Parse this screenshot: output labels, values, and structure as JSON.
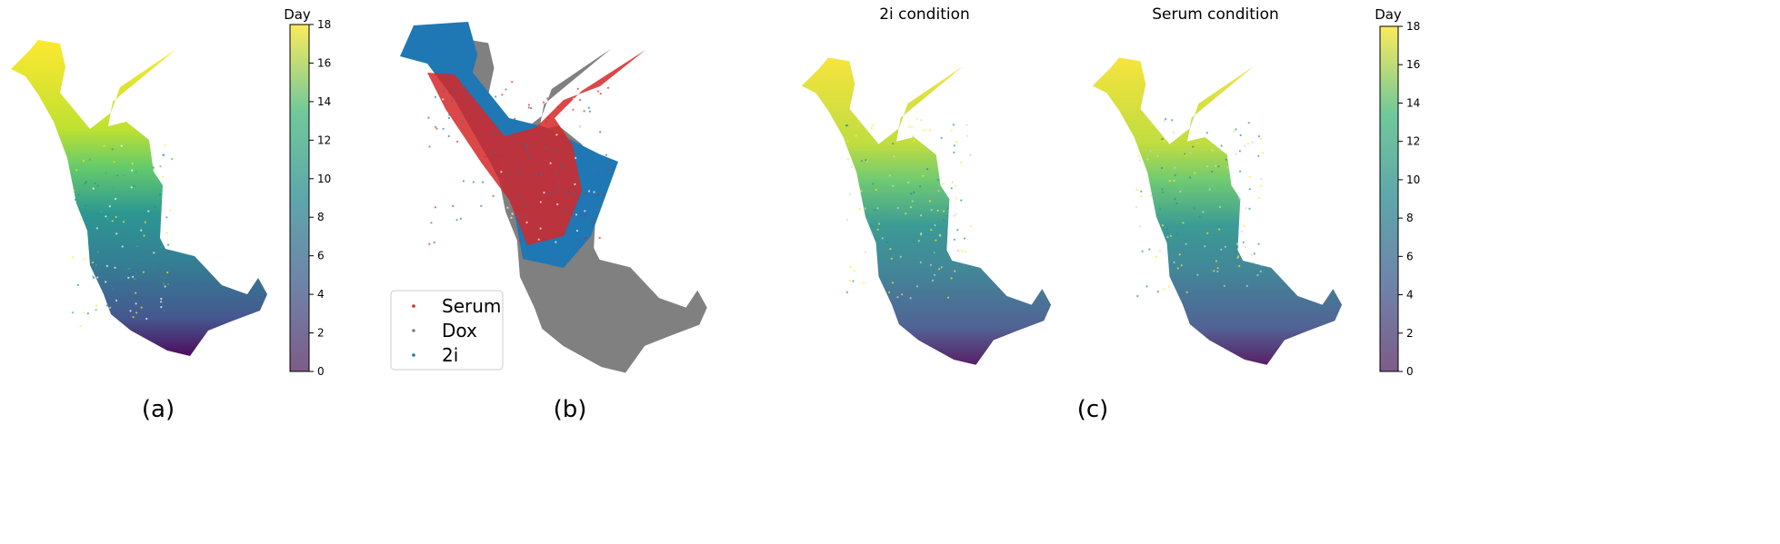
{
  "chart_data": [
    {
      "id": "panel_a",
      "type": "scatter",
      "panel_label": "(a)",
      "title": "",
      "color_by": "Day",
      "colormap": "viridis",
      "colorbar": {
        "label": "Day",
        "range": [
          0,
          18
        ],
        "ticks": [
          "0",
          "2",
          "4",
          "6",
          "8",
          "10",
          "12",
          "14",
          "16",
          "18"
        ]
      },
      "axes_visible": false
    },
    {
      "id": "panel_b",
      "type": "scatter",
      "panel_label": "(b)",
      "title": "",
      "color_by": "condition",
      "legend_position": "lower-left",
      "series": [
        {
          "name": "Serum",
          "color": "#d62728"
        },
        {
          "name": "Dox",
          "color": "#7f7f7f"
        },
        {
          "name": "2i",
          "color": "#1f77b4"
        }
      ],
      "axes_visible": false
    },
    {
      "id": "panel_c1",
      "type": "scatter",
      "title": "2i condition",
      "color_by": "Day",
      "colormap": "viridis",
      "background_color": "#d3d3d3",
      "axes_visible": false
    },
    {
      "id": "panel_c2",
      "type": "scatter",
      "title": "Serum condition",
      "color_by": "Day",
      "colormap": "viridis",
      "background_color": "#d3d3d3",
      "colorbar": {
        "label": "Day",
        "range": [
          0,
          18
        ],
        "ticks": [
          "0",
          "2",
          "4",
          "6",
          "8",
          "10",
          "12",
          "14",
          "16",
          "18"
        ]
      },
      "axes_visible": false
    }
  ],
  "labels": {
    "panel_a": "(a)",
    "panel_b": "(b)",
    "panel_c": "(c)",
    "c1_title": "2i condition",
    "c2_title": "Serum condition",
    "colorbar_left_label": "Day",
    "colorbar_right_label": "Day"
  }
}
